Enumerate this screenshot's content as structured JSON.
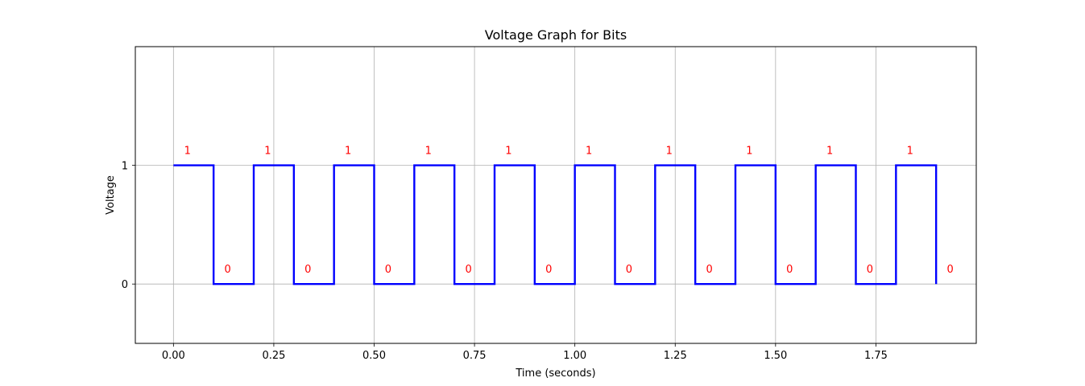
{
  "chart_data": {
    "type": "line",
    "title": "Voltage Graph for Bits",
    "xlabel": "Time (seconds)",
    "ylabel": "Voltage",
    "xlim": [
      -0.095,
      2.0
    ],
    "ylim": [
      -0.5,
      2.0
    ],
    "x_ticks": [
      0.0,
      0.25,
      0.5,
      0.75,
      1.0,
      1.25,
      1.5,
      1.75
    ],
    "x_tick_labels": [
      "0.00",
      "0.25",
      "0.50",
      "0.75",
      "1.00",
      "1.25",
      "1.50",
      "1.75"
    ],
    "y_ticks": [
      0,
      1
    ],
    "y_tick_labels": [
      "0",
      "1"
    ],
    "grid": true,
    "step": "post",
    "bit_duration": 0.1,
    "bits": [
      1,
      0,
      1,
      0,
      1,
      0,
      1,
      0,
      1,
      0,
      1,
      0,
      1,
      0,
      1,
      0,
      1,
      0,
      1,
      0
    ],
    "bit_label_texts": [
      "1",
      "0",
      "1",
      "0",
      "1",
      "0",
      "1",
      "0",
      "1",
      "0",
      "1",
      "0",
      "1",
      "0",
      "1",
      "0",
      "1",
      "0",
      "1",
      "0"
    ],
    "series": [
      {
        "x": [
          0.0,
          0.1,
          0.2,
          0.3,
          0.4,
          0.5,
          0.6,
          0.7,
          0.8,
          0.9,
          1.0,
          1.1,
          1.2,
          1.3,
          1.4,
          1.5,
          1.6,
          1.7,
          1.8,
          1.9
        ],
        "y": [
          1,
          0,
          1,
          0,
          1,
          0,
          1,
          0,
          1,
          0,
          1,
          0,
          1,
          0,
          1,
          0,
          1,
          0,
          1,
          0
        ]
      }
    ],
    "colors": {
      "line": "#0000ff",
      "bit_labels": "#ff0000",
      "grid": "#b0b0b0",
      "axes": "#000000"
    }
  }
}
